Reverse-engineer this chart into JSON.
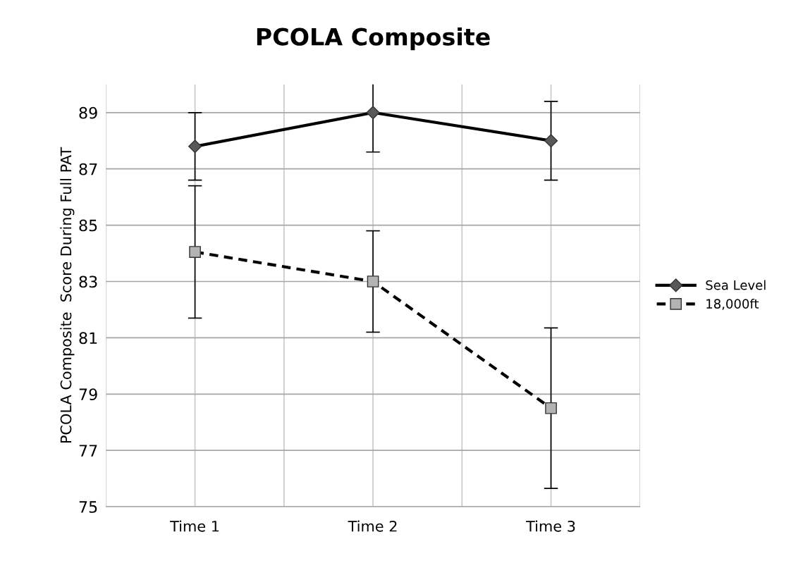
{
  "chart_data": {
    "type": "line",
    "title": "PCOLA Composite",
    "ylabel": "PCOLA Composite  Score During Full PAT",
    "categories": [
      "Time 1",
      "Time 2",
      "Time 3"
    ],
    "series": [
      {
        "name": "Sea Level",
        "color": "#000000",
        "values": [
          87.8,
          89,
          88
        ],
        "errors": [
          1.2,
          1.4,
          1.4
        ],
        "marker": "diamond",
        "line_style": "solid"
      },
      {
        "name": "18,000ft",
        "color": "#000000",
        "values": [
          84.05,
          83,
          78.5
        ],
        "errors": [
          2.35,
          1.8,
          2.85
        ],
        "marker": "square",
        "line_style": "dashed"
      }
    ],
    "ylim": [
      75,
      90
    ],
    "yticks": [
      75,
      77,
      79,
      81,
      83,
      85,
      87,
      89
    ],
    "grid": true,
    "legend": "right"
  }
}
